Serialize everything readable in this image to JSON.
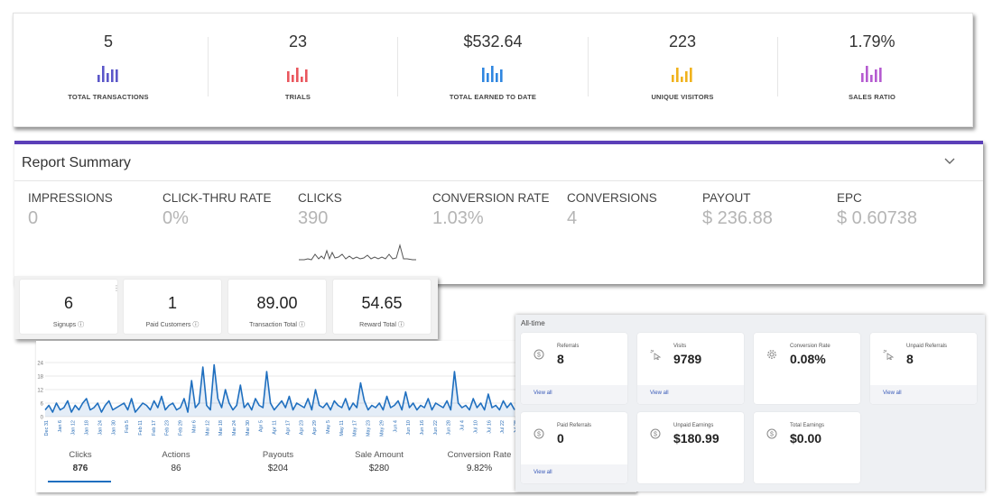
{
  "stats": [
    {
      "value": "5",
      "label": "TOTAL TRANSACTIONS",
      "color": "#5b57c9"
    },
    {
      "value": "23",
      "label": "TRIALS",
      "color": "#e9565d"
    },
    {
      "value": "$532.64",
      "label": "TOTAL EARNED TO DATE",
      "color": "#2f86e0"
    },
    {
      "value": "223",
      "label": "UNIQUE VISITORS",
      "color": "#f0b21c"
    },
    {
      "value": "1.79%",
      "label": "SALES RATIO",
      "color": "#b55bd0"
    }
  ],
  "report_summary": {
    "title": "Report Summary",
    "accent": "#5b3fb8",
    "metrics": [
      {
        "label": "IMPRESSIONS",
        "value": "0"
      },
      {
        "label": "CLICK-THRU RATE",
        "value": "0%"
      },
      {
        "label": "CLICKS",
        "value": "390"
      },
      {
        "label": "CONVERSION RATE",
        "value": "1.03%"
      },
      {
        "label": "CONVERSIONS",
        "value": "4"
      },
      {
        "label": "PAYOUT",
        "value": "$ 236.88"
      },
      {
        "label": "EPC",
        "value": "$ 0.60738"
      }
    ]
  },
  "summary_cards": [
    {
      "value": "6",
      "label": "Signups"
    },
    {
      "value": "1",
      "label": "Paid Customers"
    },
    {
      "value": "89.00",
      "label": "Transaction Total"
    },
    {
      "value": "54.65",
      "label": "Reward Total"
    }
  ],
  "chart_data": {
    "type": "line",
    "title": "",
    "xlabel": "",
    "ylabel": "",
    "ylim": [
      0,
      24
    ],
    "y_ticks": [
      "0",
      "6",
      "12",
      "18",
      "24"
    ],
    "x_tick_labels": [
      "Dec 31",
      "Jan 6",
      "Jan 12",
      "Jan 18",
      "Jan 24",
      "Jan 30",
      "Feb 5",
      "Feb 11",
      "Feb 17",
      "Feb 23",
      "Feb 29",
      "Mar 6",
      "Mar 12",
      "Mar 18",
      "Mar 24",
      "Mar 30",
      "Apr 5",
      "Apr 11",
      "Apr 17",
      "Apr 23",
      "Apr 29",
      "May 5",
      "May 11",
      "May 17",
      "May 23",
      "May 29",
      "Jun 4",
      "Jun 10",
      "Jun 16",
      "Jun 22",
      "Jun 28",
      "Jul 4",
      "Jul 10",
      "Jul 16",
      "Jul 22",
      "Jul 28"
    ],
    "series": [
      {
        "name": "Clicks",
        "color": "#1f6fbf",
        "values": [
          3,
          5,
          2,
          6,
          3,
          4,
          7,
          2,
          5,
          3,
          6,
          8,
          3,
          4,
          6,
          2,
          5,
          7,
          3,
          4,
          5,
          6,
          3,
          8,
          2,
          4,
          6,
          5,
          3,
          7,
          4,
          9,
          3,
          5,
          6,
          3,
          4,
          8,
          2,
          16,
          4,
          6,
          22,
          5,
          3,
          23,
          8,
          4,
          12,
          6,
          3,
          5,
          14,
          4,
          6,
          3,
          8,
          5,
          4,
          20,
          6,
          3,
          5,
          7,
          4,
          9,
          3,
          6,
          5,
          4,
          8,
          3,
          12,
          5,
          4,
          6,
          3,
          7,
          5,
          4,
          8,
          3,
          6,
          4,
          15,
          7,
          3,
          5,
          4,
          6,
          3,
          9,
          4,
          5,
          7,
          3,
          11,
          4,
          6,
          3,
          5,
          4,
          8,
          3,
          6,
          5,
          4,
          7,
          3,
          20,
          6,
          4,
          5,
          3,
          8,
          4,
          6,
          3,
          10,
          4,
          5,
          3,
          7,
          4,
          6,
          3
        ]
      }
    ]
  },
  "tabs": [
    {
      "label": "Clicks",
      "value": "876"
    },
    {
      "label": "Actions",
      "value": "86"
    },
    {
      "label": "Payouts",
      "value": "$204"
    },
    {
      "label": "Sale Amount",
      "value": "$280"
    },
    {
      "label": "Conversion Rate",
      "value": "9.82%"
    }
  ],
  "all_time": {
    "caption": "All-time",
    "view_all": "View all",
    "cards": [
      {
        "label": "Referrals",
        "value": "8",
        "icon": "dollar-circle-icon",
        "view_all": true
      },
      {
        "label": "Visits",
        "value": "9789",
        "icon": "cursor-click-icon",
        "view_all": true
      },
      {
        "label": "Conversion Rate",
        "value": "0.08%",
        "icon": "gear-icon",
        "view_all": false
      },
      {
        "label": "Unpaid Referrals",
        "value": "8",
        "icon": "cursor-click-icon",
        "view_all": true
      },
      {
        "label": "Paid Referrals",
        "value": "0",
        "icon": "dollar-circle-icon",
        "view_all": true
      },
      {
        "label": "Unpaid Earnings",
        "value": "$180.99",
        "icon": "dollar-circle-icon",
        "view_all": false
      },
      {
        "label": "Total Earnings",
        "value": "$0.00",
        "icon": "dollar-circle-icon",
        "view_all": false
      }
    ]
  }
}
